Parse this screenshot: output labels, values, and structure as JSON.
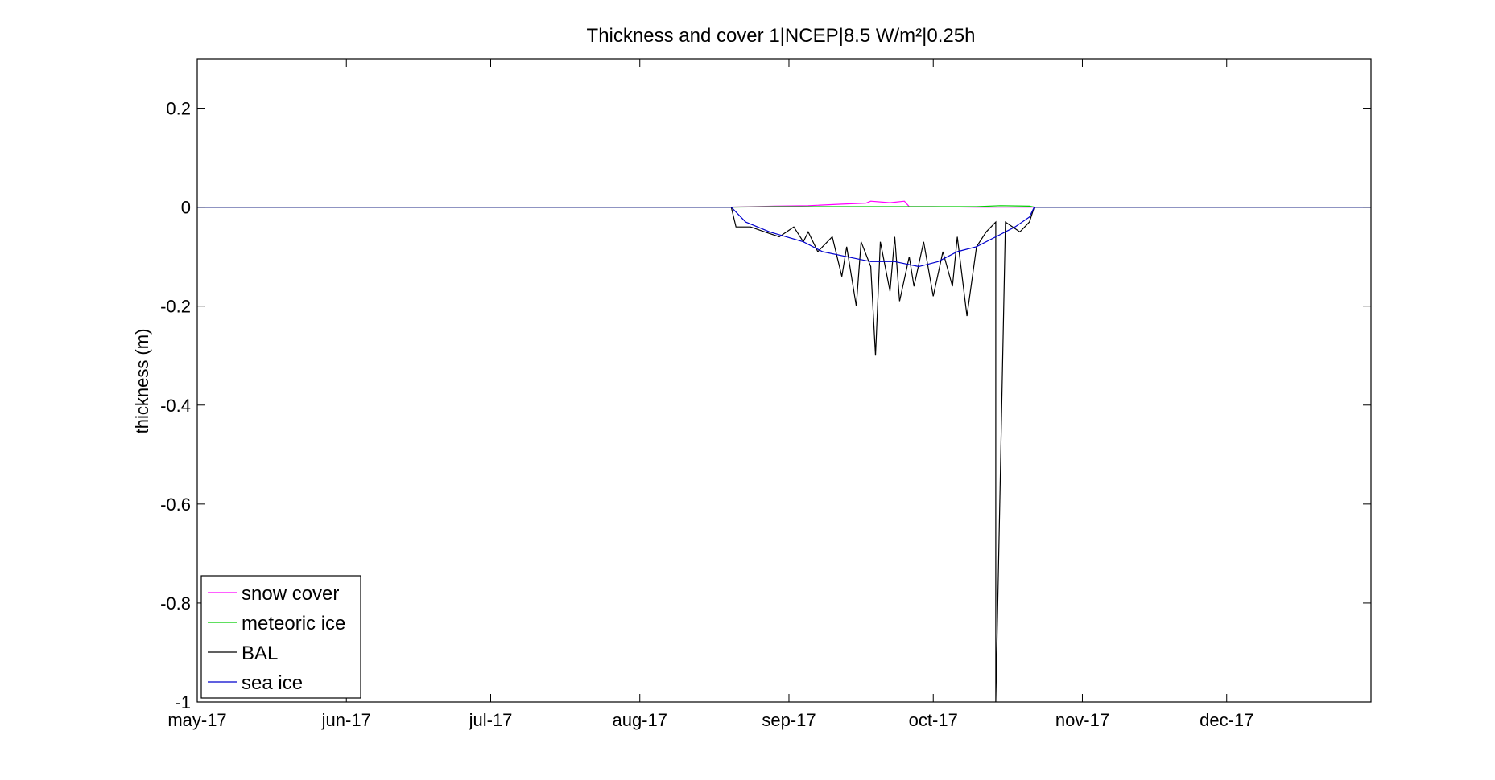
{
  "chart_data": {
    "type": "line",
    "title": "Thickness and cover 1|NCEP|8.5 W/m²|0.25h",
    "ylabel": "thickness (m)",
    "xlabel": "",
    "xlim": [
      "2017-05-01",
      "2017-12-31"
    ],
    "ylim": [
      -1,
      0.3
    ],
    "yticks": [
      0.2,
      0,
      -0.2,
      -0.4,
      -0.6,
      -0.8,
      -1
    ],
    "ytick_labels": [
      "0.2",
      "0",
      "-0.2",
      "-0.4",
      "-0.6",
      "-0.8",
      "-1"
    ],
    "xticks": [
      "2017-05-01",
      "2017-06-01",
      "2017-07-01",
      "2017-08-01",
      "2017-09-01",
      "2017-10-01",
      "2017-11-01",
      "2017-12-01"
    ],
    "xtick_labels": [
      "may-17",
      "jun-17",
      "jul-17",
      "aug-17",
      "sep-17",
      "oct-17",
      "nov-17",
      "dec-17"
    ],
    "grid": false,
    "legend_position": "bottom-left",
    "series": [
      {
        "name": "snow cover",
        "color": "#ff00ff",
        "x": [
          "2017-05-01",
          "2017-08-20",
          "2017-08-29",
          "2017-09-05",
          "2017-09-12",
          "2017-09-17",
          "2017-09-18",
          "2017-09-22",
          "2017-09-25",
          "2017-09-26",
          "2017-10-01",
          "2017-10-10",
          "2017-10-22",
          "2017-12-31"
        ],
        "y": [
          0,
          0,
          0.002,
          0.003,
          0.006,
          0.008,
          0.012,
          0.009,
          0.012,
          0.001,
          0.001,
          0,
          0,
          0
        ]
      },
      {
        "name": "meteoric ice",
        "color": "#00cc00",
        "x": [
          "2017-05-01",
          "2017-08-20",
          "2017-08-29",
          "2017-09-26",
          "2017-10-10",
          "2017-10-15",
          "2017-10-21",
          "2017-10-22",
          "2017-12-31"
        ],
        "y": [
          0,
          0,
          0.001,
          0.001,
          0.001,
          0.003,
          0.002,
          0,
          0
        ]
      },
      {
        "name": "BAL",
        "color": "#000000",
        "x": [
          "2017-05-01",
          "2017-08-20",
          "2017-08-21",
          "2017-08-24",
          "2017-08-27",
          "2017-08-30",
          "2017-09-02",
          "2017-09-04",
          "2017-09-05",
          "2017-09-07",
          "2017-09-10",
          "2017-09-12",
          "2017-09-13",
          "2017-09-15",
          "2017-09-16",
          "2017-09-18",
          "2017-09-19",
          "2017-09-20",
          "2017-09-22",
          "2017-09-23",
          "2017-09-24",
          "2017-09-26",
          "2017-09-27",
          "2017-09-29",
          "2017-10-01",
          "2017-10-03",
          "2017-10-05",
          "2017-10-06",
          "2017-10-08",
          "2017-10-10",
          "2017-10-12",
          "2017-10-14",
          "2017-10-14",
          "2017-10-16",
          "2017-10-19",
          "2017-10-21",
          "2017-10-22",
          "2017-12-31"
        ],
        "y": [
          0,
          0,
          -0.04,
          -0.04,
          -0.05,
          -0.06,
          -0.04,
          -0.07,
          -0.05,
          -0.09,
          -0.06,
          -0.14,
          -0.08,
          -0.2,
          -0.07,
          -0.12,
          -0.3,
          -0.07,
          -0.17,
          -0.06,
          -0.19,
          -0.1,
          -0.16,
          -0.07,
          -0.18,
          -0.09,
          -0.16,
          -0.06,
          -0.22,
          -0.08,
          -0.05,
          -0.03,
          -1.0,
          -0.03,
          -0.05,
          -0.03,
          0,
          0
        ]
      },
      {
        "name": "sea ice",
        "color": "#0000cc",
        "x": [
          "2017-05-01",
          "2017-08-20",
          "2017-08-23",
          "2017-08-28",
          "2017-09-04",
          "2017-09-08",
          "2017-09-13",
          "2017-09-18",
          "2017-09-23",
          "2017-09-28",
          "2017-10-02",
          "2017-10-06",
          "2017-10-10",
          "2017-10-14",
          "2017-10-18",
          "2017-10-21",
          "2017-10-22",
          "2017-12-31"
        ],
        "y": [
          0,
          0,
          -0.03,
          -0.05,
          -0.07,
          -0.09,
          -0.1,
          -0.11,
          -0.11,
          -0.12,
          -0.11,
          -0.09,
          -0.08,
          -0.06,
          -0.04,
          -0.02,
          0,
          0
        ]
      }
    ]
  }
}
